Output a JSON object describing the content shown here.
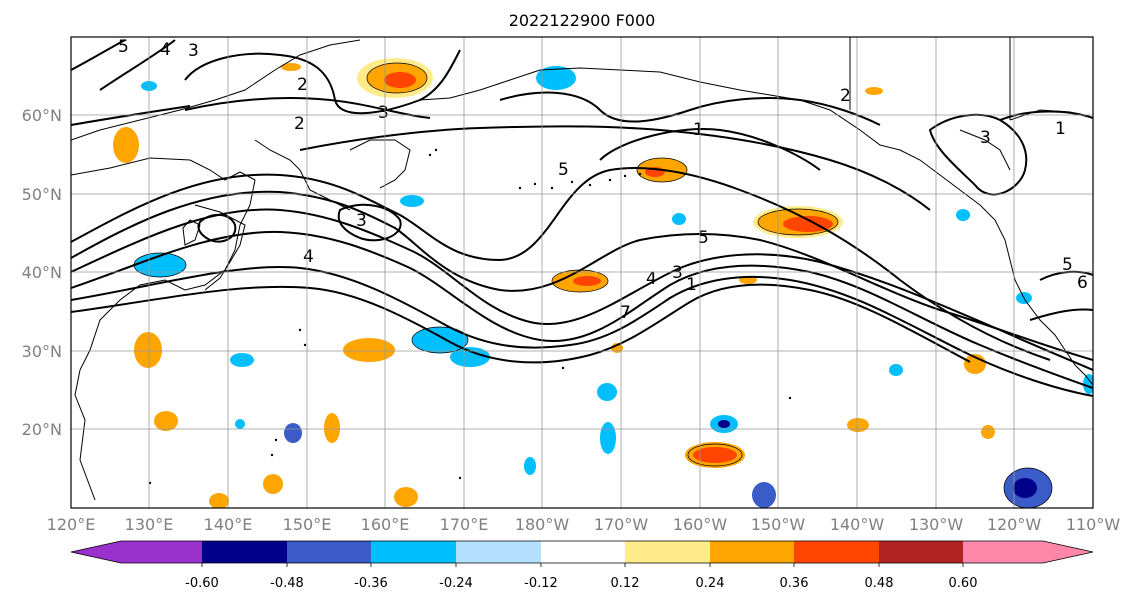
{
  "title": "2022122900 F000",
  "lat_labels": [
    "60°N",
    "50°N",
    "40°N",
    "30°N",
    "20°N"
  ],
  "lon_labels": [
    "120°E",
    "130°E",
    "140°E",
    "150°E",
    "160°E",
    "170°E",
    "180°W",
    "170°W",
    "160°W",
    "150°W",
    "140°W",
    "130°W",
    "120°W",
    "110°W"
  ],
  "colorbar": {
    "colors": [
      "#9932cc",
      "#00008b",
      "#3a5bc8",
      "#00bfff",
      "#b3e0ff",
      "#ffffff",
      "#ffeb8a",
      "#ffa500",
      "#ff4500",
      "#b22222",
      "#ff88aa"
    ],
    "tick_labels": [
      "-0.60",
      "-0.48",
      "-0.36",
      "-0.24",
      "-0.12",
      "0.12",
      "0.24",
      "0.36",
      "0.48",
      "0.60"
    ]
  },
  "contour_labels": [
    "5",
    "4",
    "3",
    "2",
    "2",
    "3",
    "5",
    "5",
    "4",
    "3",
    "1",
    "2",
    "1",
    "1",
    "3",
    "4",
    "3",
    "5",
    "6",
    "7"
  ]
}
